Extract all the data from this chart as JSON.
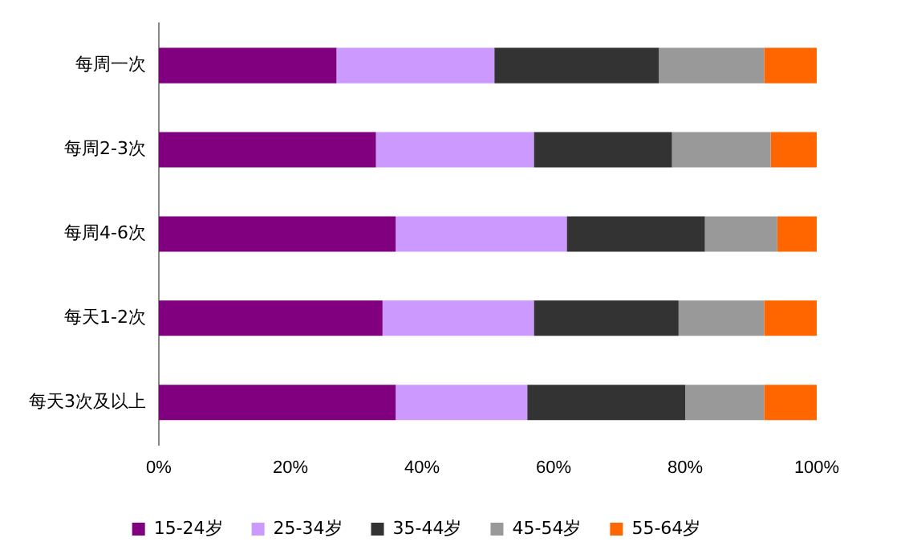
{
  "chart_data": {
    "type": "bar",
    "orientation": "horizontal",
    "stacked": true,
    "categories": [
      "每周一次",
      "每周2-3次",
      "每周4-6次",
      "每天1-2次",
      "每天3次及以上"
    ],
    "series": [
      {
        "name": "15-24岁",
        "color": "#800080",
        "values": [
          27,
          33,
          36,
          34,
          36
        ]
      },
      {
        "name": "25-34岁",
        "color": "#cc99ff",
        "values": [
          24,
          24,
          26,
          23,
          20
        ]
      },
      {
        "name": "35-44岁",
        "color": "#333333",
        "values": [
          25,
          21,
          21,
          22,
          24
        ]
      },
      {
        "name": "45-54岁",
        "color": "#999999",
        "values": [
          16,
          15,
          11,
          13,
          12
        ]
      },
      {
        "name": "55-64岁",
        "color": "#ff6600",
        "values": [
          8,
          7,
          6,
          8,
          8
        ]
      }
    ],
    "xlim": [
      0,
      100
    ],
    "xticks": [
      {
        "value": 0,
        "label": "0%"
      },
      {
        "value": 20,
        "label": "20%"
      },
      {
        "value": 40,
        "label": "40%"
      },
      {
        "value": 60,
        "label": "60%"
      },
      {
        "value": 80,
        "label": "80%"
      },
      {
        "value": 100,
        "label": "100%"
      }
    ],
    "grid": false,
    "legend": "bottom"
  }
}
